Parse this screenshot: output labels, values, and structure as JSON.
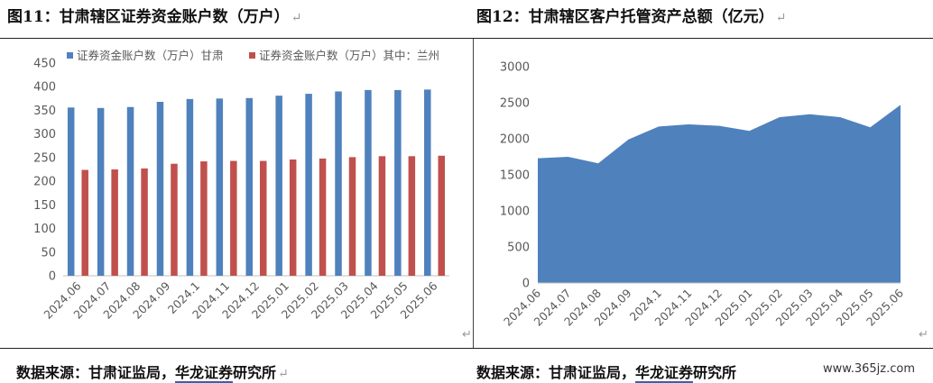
{
  "figures": {
    "left_title": "图11：甘肃辖区证券资金账户数（万户）",
    "right_title": "图12：甘肃辖区客户托管资产总额（亿元）",
    "return_mark": "↵"
  },
  "source": {
    "prefix": "数据来源：甘肃证监局，",
    "underlined": "华龙证券",
    "suffix": "研究所"
  },
  "watermark": "www.365jz.com",
  "colors": {
    "blue": "#4f81bd",
    "red": "#c0504d",
    "area": "#4f81bd"
  },
  "chart_data": [
    {
      "type": "bar",
      "title": "",
      "categories": [
        "2024.06",
        "2024.07",
        "2024.08",
        "2024.09",
        "2024.1",
        "2024.11",
        "2024.12",
        "2025.01",
        "2025.02",
        "2025.03",
        "2025.04",
        "2025.05",
        "2025.06"
      ],
      "series": [
        {
          "name": "证券资金账户数（万户）甘肃",
          "color": "#4f81bd",
          "values": [
            356,
            355,
            357,
            368,
            374,
            375,
            376,
            381,
            385,
            390,
            393,
            393,
            394
          ]
        },
        {
          "name": "证券资金账户数（万户）其中：兰州",
          "color": "#c0504d",
          "values": [
            224,
            225,
            227,
            237,
            242,
            243,
            243,
            246,
            248,
            251,
            253,
            253,
            254
          ]
        }
      ],
      "ylim": [
        0,
        450
      ],
      "yticks": [
        0,
        50,
        100,
        150,
        200,
        250,
        300,
        350,
        400,
        450
      ],
      "legend": "top",
      "grid": false
    },
    {
      "type": "area",
      "title": "",
      "categories": [
        "2024.06",
        "2024.07",
        "2024.08",
        "2024.09",
        "2024.1",
        "2024.11",
        "2024.12",
        "2025.01",
        "2025.02",
        "2025.03",
        "2025.04",
        "2025.05",
        "2025.06"
      ],
      "values": [
        1730,
        1750,
        1660,
        1990,
        2170,
        2200,
        2180,
        2110,
        2300,
        2340,
        2300,
        2160,
        2470
      ],
      "ylim": [
        0,
        3000
      ],
      "yticks": [
        0,
        500,
        1000,
        1500,
        2000,
        2500,
        3000
      ],
      "grid": false
    }
  ]
}
